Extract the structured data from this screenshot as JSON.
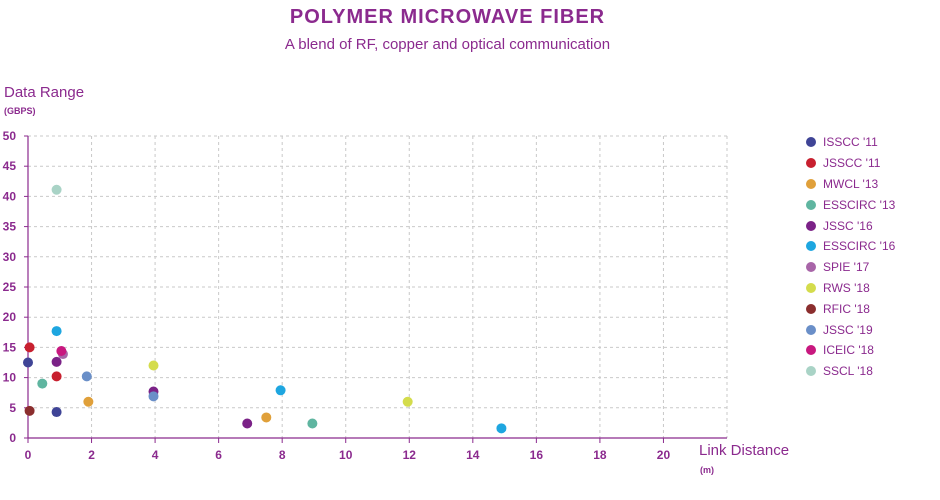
{
  "chart_data": {
    "type": "scatter",
    "title": "POLYMER MICROWAVE FIBER",
    "subtitle": "A blend of RF, copper and optical communication",
    "ylabel": "Data Range",
    "yunit": "(GBPS)",
    "xlabel": "Link Distance",
    "xunit": "(m)",
    "xlim": [
      0,
      22
    ],
    "ylim": [
      0,
      50
    ],
    "xticks": [
      "0",
      "2",
      "4",
      "6",
      "8",
      "10",
      "12",
      "14",
      "16",
      "18",
      "20"
    ],
    "yticks": [
      "0",
      "5",
      "10",
      "15",
      "20",
      "25",
      "30",
      "35",
      "40",
      "45",
      "50"
    ],
    "grid": true,
    "legend_position": "right",
    "series": [
      {
        "name": "ISSCC '11",
        "color": "#3f4496",
        "points": [
          {
            "x": 0.0,
            "y": 12.5
          },
          {
            "x": 0.9,
            "y": 4.3
          }
        ]
      },
      {
        "name": "JSSCC '11",
        "color": "#c8202f",
        "points": [
          {
            "x": 0.05,
            "y": 15
          },
          {
            "x": 0.9,
            "y": 10.2
          }
        ]
      },
      {
        "name": "MWCL '13",
        "color": "#e0a03a",
        "points": [
          {
            "x": 1.9,
            "y": 6
          },
          {
            "x": 7.5,
            "y": 3.4
          }
        ]
      },
      {
        "name": "ESSCIRC '13",
        "color": "#5fb5a0",
        "points": [
          {
            "x": 0.45,
            "y": 9
          },
          {
            "x": 8.95,
            "y": 2.4
          }
        ]
      },
      {
        "name": "JSSC '16",
        "color": "#7b2287",
        "points": [
          {
            "x": 0.9,
            "y": 12.6
          },
          {
            "x": 3.95,
            "y": 7.7
          },
          {
            "x": 6.9,
            "y": 2.4
          }
        ]
      },
      {
        "name": "ESSCIRC '16",
        "color": "#1ea6e0",
        "points": [
          {
            "x": 0.9,
            "y": 17.7
          },
          {
            "x": 7.95,
            "y": 7.9
          },
          {
            "x": 14.9,
            "y": 1.6
          }
        ]
      },
      {
        "name": "SPIE '17",
        "color": "#a865a8",
        "points": [
          {
            "x": 1.1,
            "y": 13.9
          }
        ]
      },
      {
        "name": "RWS '18",
        "color": "#d4dc4c",
        "points": [
          {
            "x": 3.95,
            "y": 12
          },
          {
            "x": 11.95,
            "y": 6
          }
        ]
      },
      {
        "name": "RFIC '18",
        "color": "#8b2e2e",
        "points": [
          {
            "x": 0.05,
            "y": 4.5
          }
        ]
      },
      {
        "name": "JSSC '19",
        "color": "#6a8fc8",
        "points": [
          {
            "x": 1.85,
            "y": 10.2
          },
          {
            "x": 3.95,
            "y": 6.9
          }
        ]
      },
      {
        "name": "ICEIC '18",
        "color": "#c8187f",
        "points": [
          {
            "x": 1.05,
            "y": 14.4
          }
        ]
      },
      {
        "name": "SSCL '18",
        "color": "#a9d3c6",
        "points": [
          {
            "x": 0.9,
            "y": 41.1
          }
        ]
      }
    ]
  }
}
